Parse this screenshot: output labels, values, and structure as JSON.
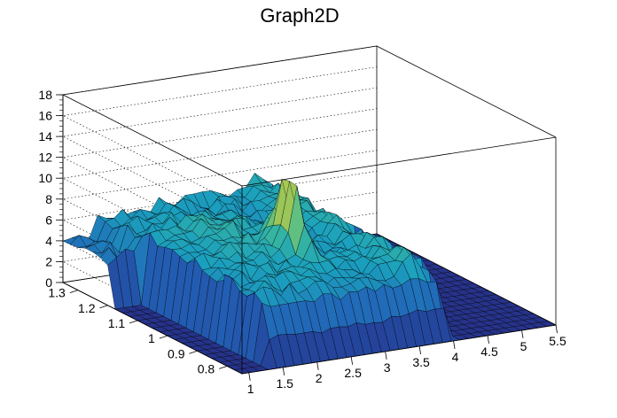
{
  "chart_data": {
    "type": "surface",
    "title": "Graph2D",
    "x_ticks": [
      "1",
      "1.5",
      "2",
      "2.5",
      "3",
      "3.5",
      "4",
      "4.5",
      "5",
      "5.5"
    ],
    "y_ticks": [
      "0.8",
      "0.9",
      "1",
      "1.1",
      "1.2",
      "1.3"
    ],
    "z_ticks": [
      "0",
      "2",
      "4",
      "6",
      "8",
      "10",
      "12",
      "14",
      "16",
      "18"
    ],
    "xlim": [
      0.9,
      5.5
    ],
    "ylim": [
      0.75,
      1.35
    ],
    "zlim": [
      0,
      18
    ],
    "grid": true,
    "colormap": "viridis-like (dark blue to yellow)",
    "surface_summary": {
      "x_range_with_data": [
        1.3,
        4.0
      ],
      "y_range_with_data": [
        0.75,
        1.35
      ],
      "typical_height": 6,
      "peak": {
        "x": 2.7,
        "y": 1.0,
        "z": 13
      },
      "flat_region_beyond_x": 4.0,
      "flat_region_height": 0
    }
  }
}
